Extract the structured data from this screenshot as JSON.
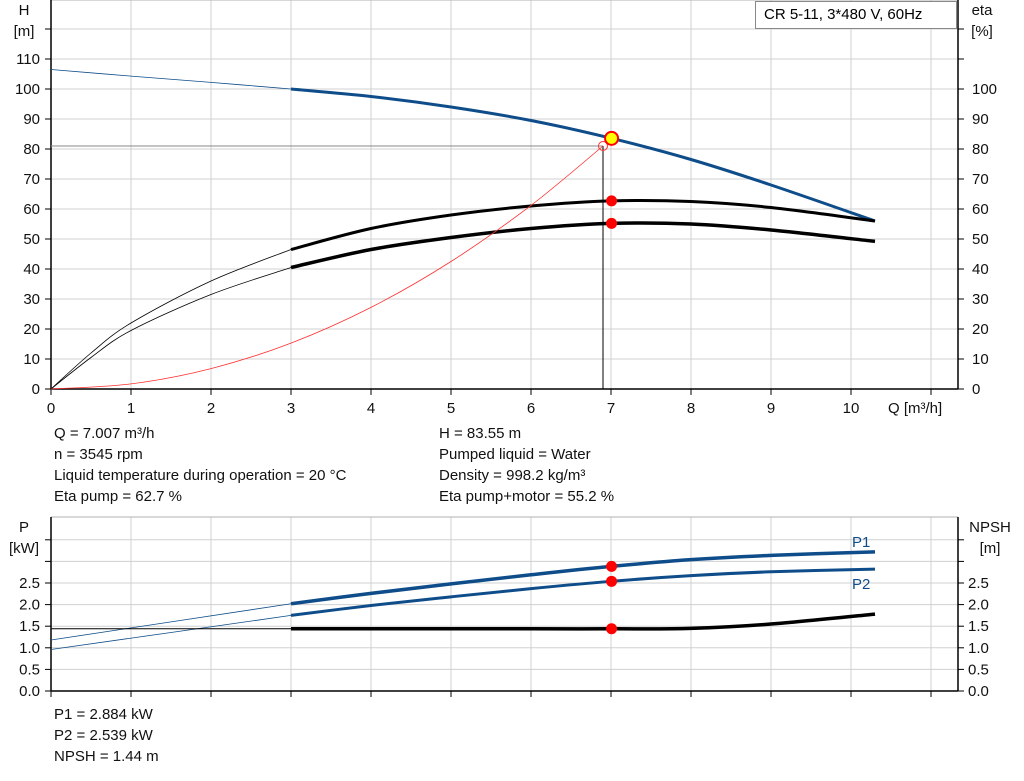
{
  "chart_data": [
    {
      "type": "line",
      "title": "CR 5-11, 3*480 V, 60Hz",
      "xlabel": "Q [m³/h]",
      "ylabel": "H",
      "ylabel_unit": "[m]",
      "y2label": "eta",
      "y2label_unit": "[%]",
      "xlim": [
        0,
        11.33
      ],
      "ylim": [
        0,
        129.7
      ],
      "grid": true,
      "x_ticks": [
        "0",
        "1",
        "2",
        "3",
        "4",
        "5",
        "6",
        "7",
        "8",
        "9",
        "10"
      ],
      "y_ticks": [
        "0",
        "10",
        "20",
        "30",
        "40",
        "50",
        "60",
        "70",
        "80",
        "90",
        "100",
        "110"
      ],
      "y2_ticks": [
        "0",
        "10",
        "20",
        "30",
        "40",
        "50",
        "60",
        "70",
        "80",
        "90",
        "100"
      ],
      "series": [
        {
          "key": "H",
          "color": "#0e4d8a",
          "x": [
            0,
            1,
            2,
            3,
            4,
            5,
            6,
            7,
            8,
            9,
            10.3
          ],
          "y": [
            106.5,
            104.3,
            102.2,
            100,
            97.5,
            94,
            89.5,
            83.6,
            76.5,
            68,
            56
          ],
          "thick_from": 3
        },
        {
          "key": "eta_pump",
          "color": "#000000",
          "x": [
            0,
            0.5,
            1,
            2,
            3,
            4,
            5,
            6,
            7,
            8,
            9,
            10.3
          ],
          "y": [
            0,
            12,
            22,
            36,
            46.5,
            53.5,
            58,
            61,
            62.7,
            62.5,
            60.5,
            56
          ],
          "thick_from": 3
        },
        {
          "key": "eta_total",
          "color": "#000000",
          "x": [
            0,
            0.5,
            1,
            2,
            3,
            4,
            5,
            6,
            7,
            8,
            9,
            10.3
          ],
          "y": [
            0,
            10.5,
            19.5,
            31.5,
            40.5,
            46.5,
            50.5,
            53.5,
            55.2,
            55,
            53,
            49.2
          ],
          "thick_from": 3,
          "heavy": true
        },
        {
          "key": "system",
          "color": "#ff3030",
          "x": [
            0,
            1,
            2,
            3,
            4,
            5,
            6,
            6.9
          ],
          "y": [
            0,
            1.7,
            6.8,
            15.3,
            27.2,
            42.5,
            61.2,
            81
          ],
          "thin": true
        }
      ],
      "operating_point": {
        "Q": 7.007,
        "H": 83.55,
        "eta_pump": 62.7,
        "eta_total": 55.2,
        "required_Q": 6.9,
        "required_H": 81
      }
    },
    {
      "type": "line",
      "ylabel": "P",
      "ylabel_unit": "[kW]",
      "y2label": "NPSH",
      "y2label_unit": "[m]",
      "xlim": [
        0,
        11.33
      ],
      "ylim": [
        0,
        4.03
      ],
      "grid": true,
      "y_ticks": [
        "0.0",
        "0.5",
        "1.0",
        "1.5",
        "2.0",
        "2.5"
      ],
      "series": [
        {
          "key": "P1",
          "name": "P1",
          "color": "#0e4d8a",
          "x": [
            0,
            3,
            4,
            5,
            6,
            7,
            8,
            9,
            10.3
          ],
          "y": [
            1.18,
            2.02,
            2.26,
            2.48,
            2.69,
            2.884,
            3.04,
            3.14,
            3.22
          ],
          "thick_from": 3,
          "heavy": true
        },
        {
          "key": "P2",
          "name": "P2",
          "color": "#0e4d8a",
          "x": [
            0,
            3,
            4,
            5,
            6,
            7,
            8,
            9,
            10.3
          ],
          "y": [
            0.96,
            1.75,
            1.98,
            2.18,
            2.37,
            2.539,
            2.67,
            2.76,
            2.82
          ],
          "thick_from": 3
        },
        {
          "key": "NPSH",
          "color": "#000000",
          "x": [
            3,
            4,
            5,
            6,
            7,
            8,
            9,
            10.3
          ],
          "y": [
            1.44,
            1.44,
            1.44,
            1.44,
            1.44,
            1.45,
            1.55,
            1.78
          ],
          "heavy": true,
          "flat_before": 1.44
        }
      ],
      "operating_point": {
        "P1": 2.884,
        "P2": 2.539,
        "NPSH": 1.44
      }
    }
  ],
  "info_top": {
    "left": [
      "Q = 7.007 m³/h",
      "n = 3545 rpm",
      "Liquid temperature during operation = 20 °C",
      "Eta pump = 62.7 %"
    ],
    "right": [
      "H = 83.55 m",
      "Pumped liquid = Water",
      "Density = 998.2 kg/m³",
      "Eta pump+motor = 55.2 %"
    ]
  },
  "info_bottom": [
    "P1 = 2.884 kW",
    "P2 = 2.539 kW",
    "NPSH = 1.44 m"
  ]
}
